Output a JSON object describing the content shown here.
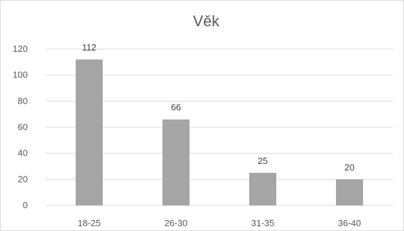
{
  "chart_data": {
    "type": "bar",
    "title": "Věk",
    "categories": [
      "18-25",
      "26-30",
      "31-35",
      "36-40"
    ],
    "values": [
      112,
      66,
      25,
      20
    ],
    "data_labels": [
      "112",
      "66",
      "25",
      "20"
    ],
    "ylim": [
      0,
      120
    ],
    "yticks": [
      "0",
      "20",
      "40",
      "60",
      "80",
      "100",
      "120"
    ],
    "xlabel": "",
    "ylabel": "",
    "grid": true,
    "bar_color": "#a5a5a5"
  }
}
